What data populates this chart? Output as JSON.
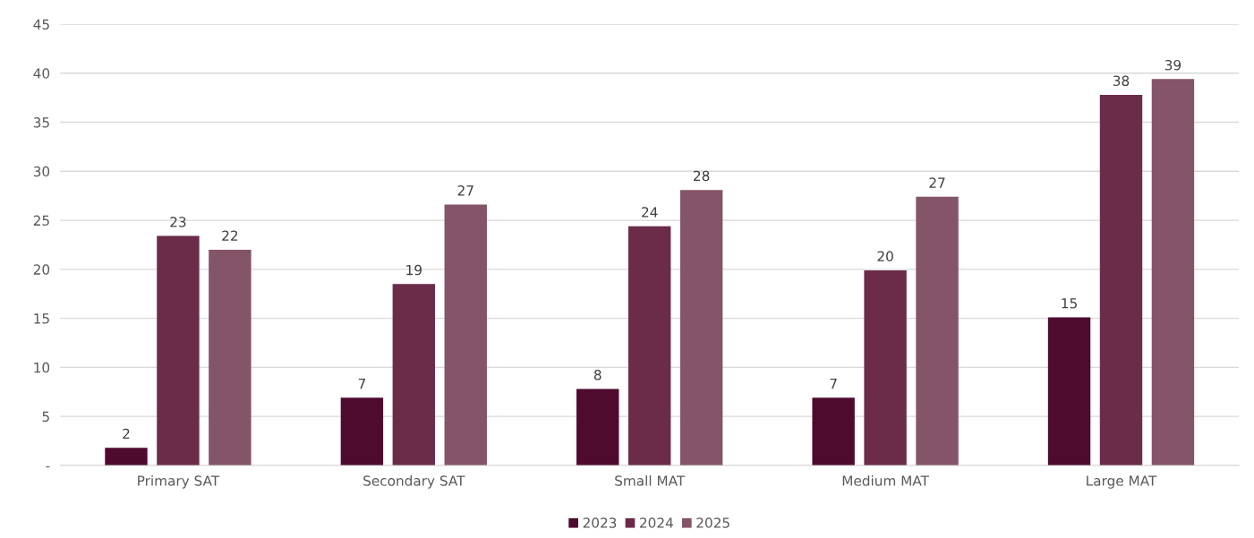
{
  "chart_data": {
    "type": "bar",
    "categories": [
      "Primary SAT",
      "Secondary SAT",
      "Small MAT",
      "Medium MAT",
      "Large MAT"
    ],
    "series": [
      {
        "name": "2023",
        "color": "#4f0b2e",
        "values": [
          1.8,
          6.9,
          7.8,
          6.9,
          15.1
        ],
        "value_labels": [
          "2",
          "7",
          "8",
          "7",
          "15"
        ]
      },
      {
        "name": "2024",
        "color": "#6b2c4a",
        "values": [
          23.4,
          18.5,
          24.4,
          19.9,
          37.8
        ],
        "value_labels": [
          "23",
          "19",
          "24",
          "20",
          "38"
        ]
      },
      {
        "name": "2025",
        "color": "#845468",
        "values": [
          22.0,
          26.6,
          28.1,
          27.4,
          39.4
        ],
        "value_labels": [
          "22",
          "27",
          "28",
          "27",
          "39"
        ]
      }
    ],
    "ylim": [
      0,
      45
    ],
    "yticks": [
      {
        "value": 0,
        "label": "-"
      },
      5,
      10,
      15,
      20,
      25,
      30,
      35,
      40,
      45
    ],
    "grid": "y",
    "legend": "bottom"
  }
}
